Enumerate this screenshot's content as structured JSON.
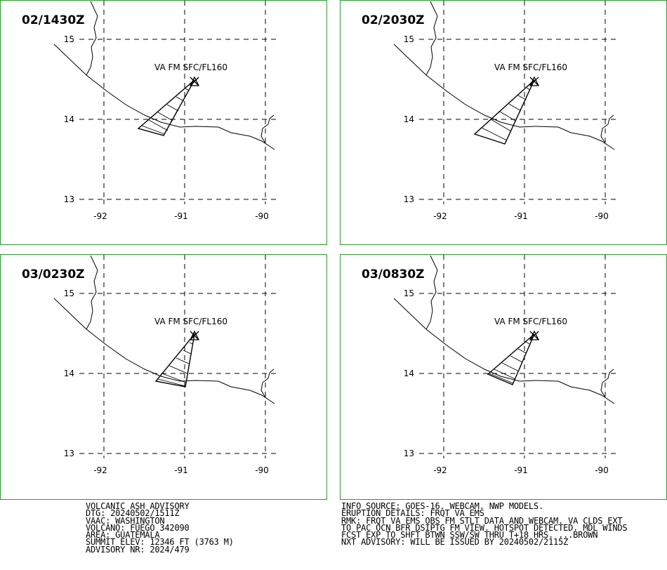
{
  "panels": [
    {
      "time": "02/1430Z",
      "cloud_label": "VA FM SFC/FL160",
      "y_ticks": [
        "15",
        "14",
        "13"
      ],
      "x_ticks": [
        "-92",
        "-91",
        "-90"
      ]
    },
    {
      "time": "02/2030Z",
      "cloud_label": "VA FM SFC/FL160",
      "y_ticks": [
        "15",
        "14",
        "13"
      ],
      "x_ticks": [
        "-92",
        "-91",
        "-90"
      ]
    },
    {
      "time": "03/0230Z",
      "cloud_label": "VA FM SFC/FL160",
      "y_ticks": [
        "15",
        "14",
        "13"
      ],
      "x_ticks": [
        "-92",
        "-91",
        "-90"
      ]
    },
    {
      "time": "03/0830Z",
      "cloud_label": "VA FM SFC/FL160",
      "y_ticks": [
        "15",
        "14",
        "13"
      ],
      "x_ticks": [
        "-92",
        "-91",
        "-90"
      ]
    }
  ],
  "advisory_left": [
    "VOLCANIC ASH ADVISORY",
    "DTG: 20240502/1511Z",
    "VAAC: WASHINGTON",
    "VOLCANO: FUEGO 342090",
    "AREA: GUATEMALA",
    "SUMMIT ELEV: 12346 FT (3763 M)",
    "ADVISORY NR: 2024/479"
  ],
  "advisory_right": [
    "INFO SOURCE: GOES-16. WEBCAM. NWP MODELS.",
    "ERUPTION DETAILS: FRQT VA EMS",
    "RMK: FRQT VA EMS OBS FM STLT DATA AND WEBCAM. VA CLDS EXT",
    "TO PAC OCN BFR DSIPTG FM VIEW. HOTSPOT DETECTED. MDL WINDS",
    "FCST EXP TO SHFT BTWN SSW/SW THRU T+18 HRS. ...BROWN",
    "NXT ADVISORY: WILL BE ISSUED BY 20240502/2115Z"
  ],
  "colors": {
    "frame": "#2f9a2f",
    "lines": "#000000"
  }
}
